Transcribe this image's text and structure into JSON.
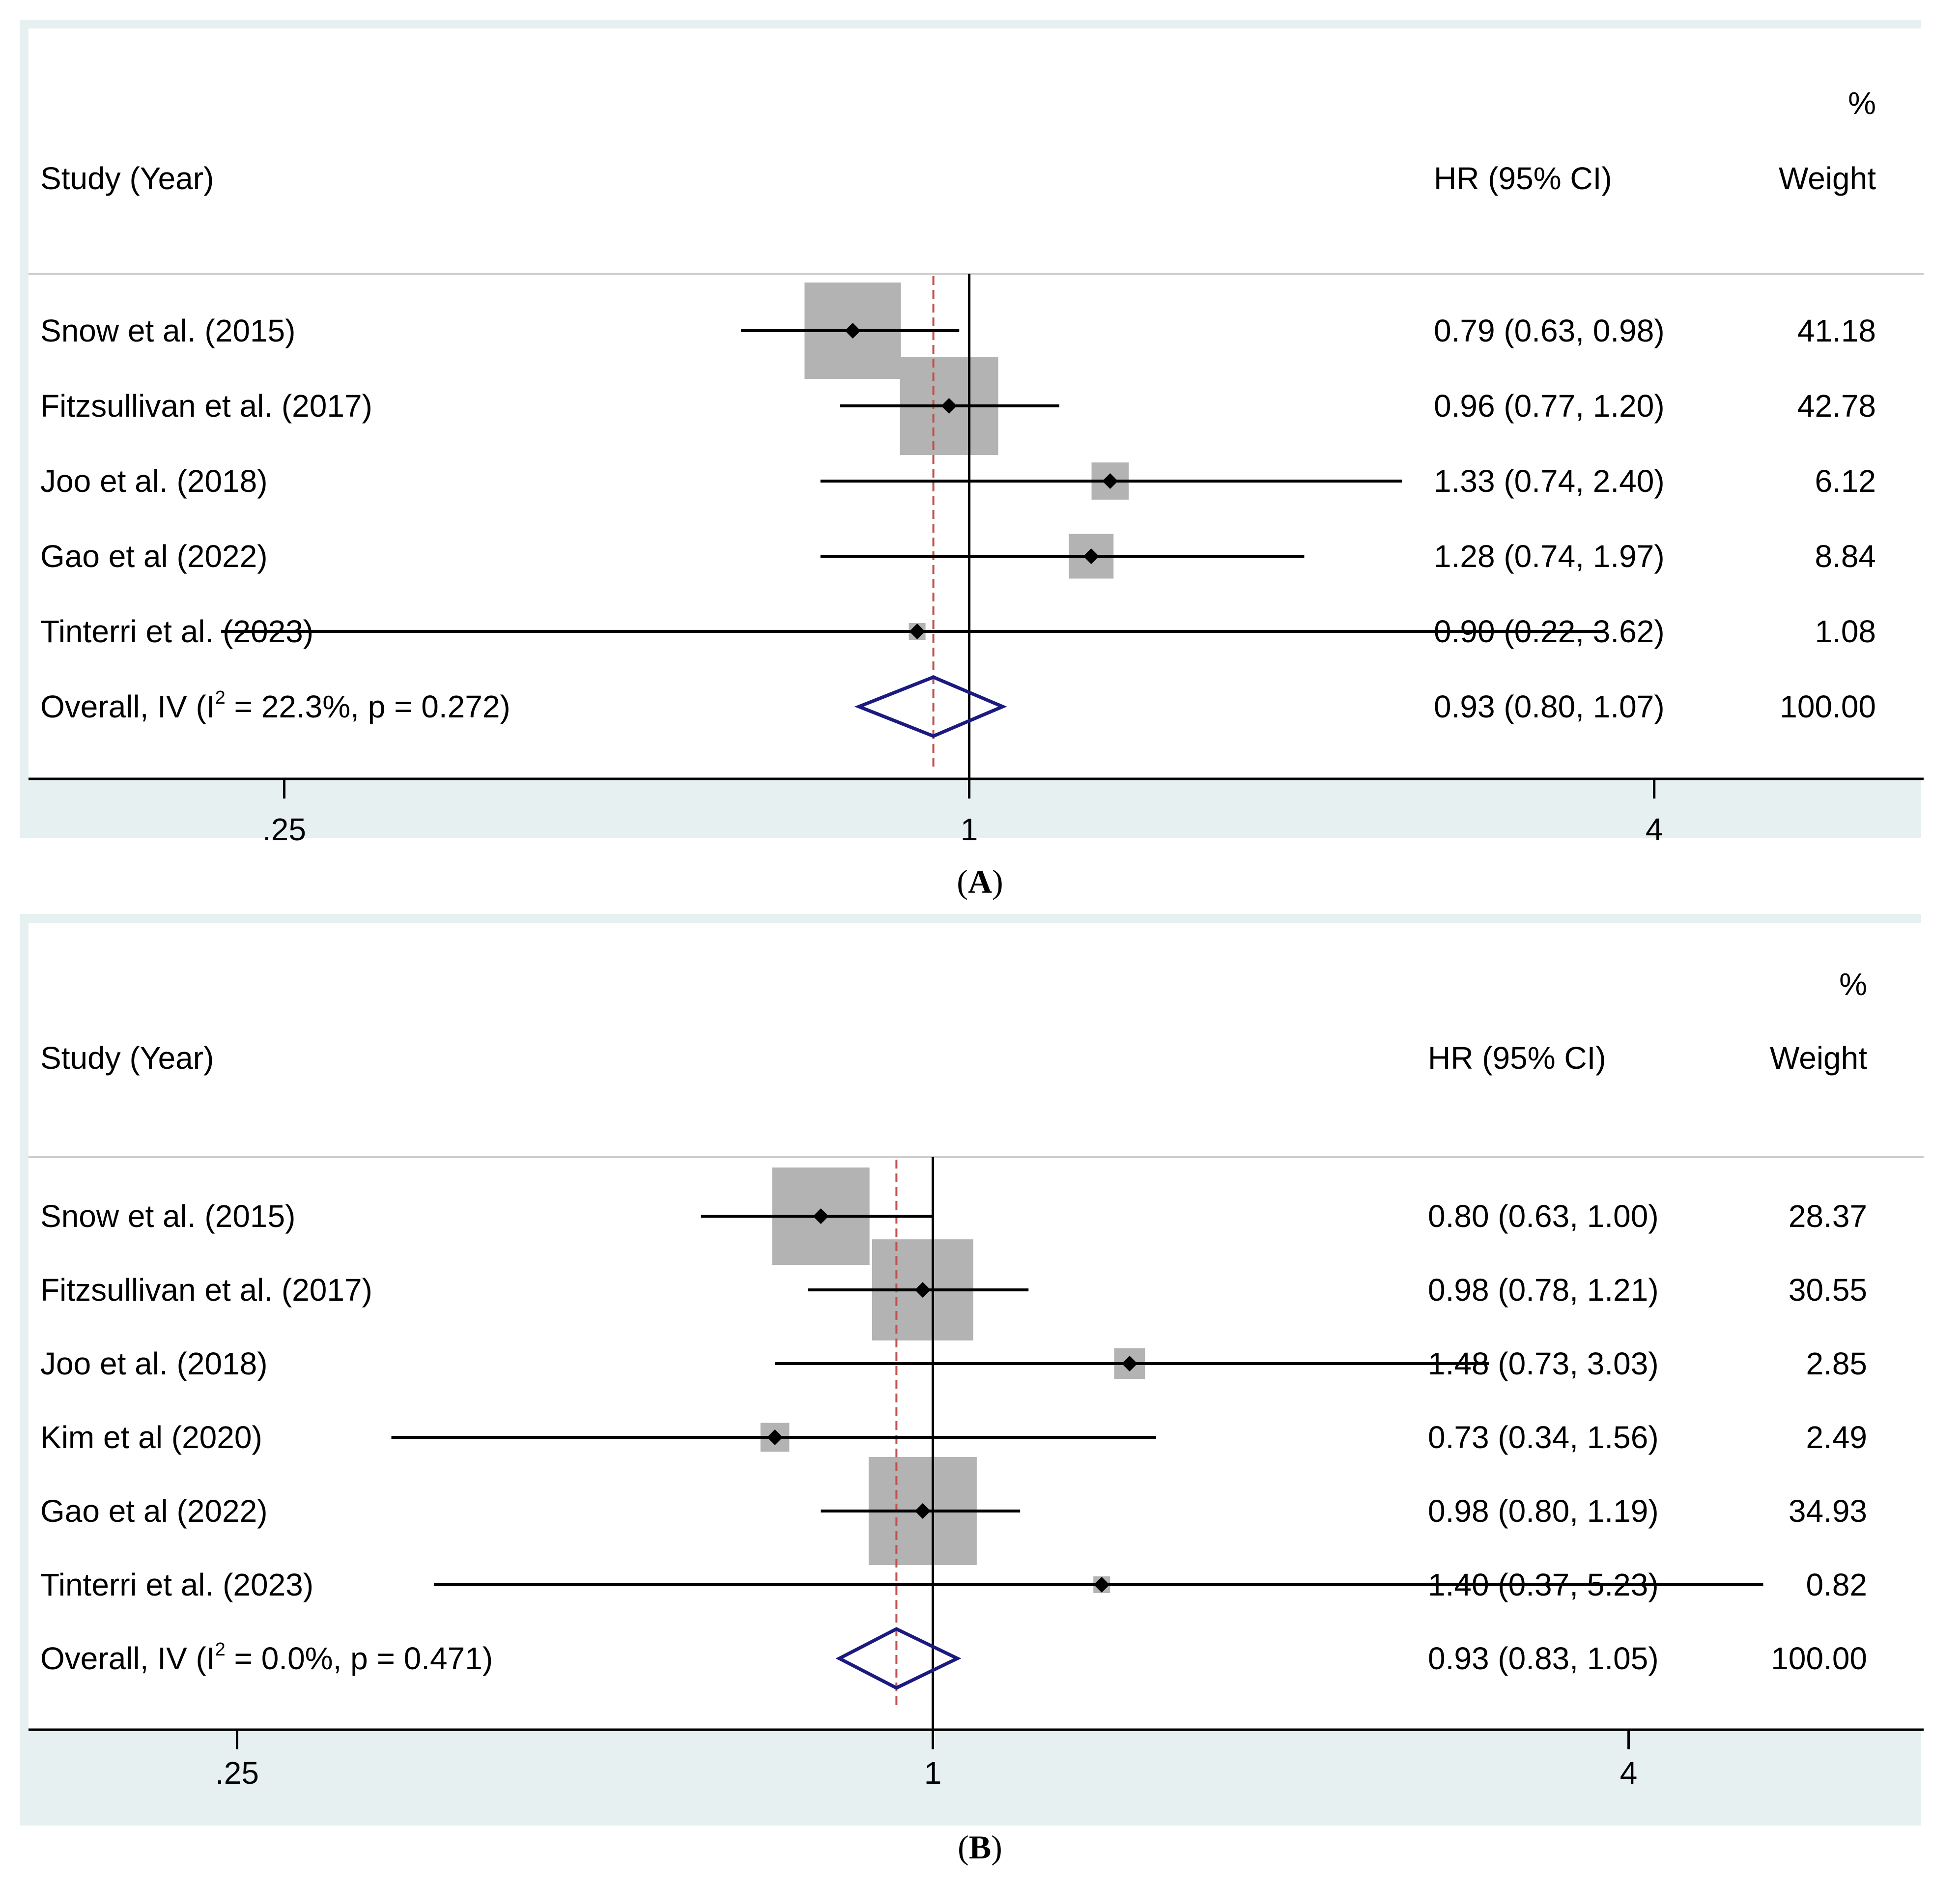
{
  "colors": {
    "outer_bg": "#e6f0f0",
    "plot_bg": "#ffffff",
    "box": "#b3b3b3",
    "ci_line": "#000000",
    "null_line": "#000000",
    "overall_line": "#c0504d",
    "diamond": "#1a1a80",
    "text": "#000000"
  },
  "chart_data": [
    {
      "type": "forest",
      "panel_label": "A",
      "header": {
        "study": "Study (Year)",
        "effect": "HR (95% CI)",
        "weight_top": "%",
        "weight": "Weight"
      },
      "x_scale": "log2",
      "x_ticks": [
        {
          "value": 0.25,
          "label": ".25"
        },
        {
          "value": 1,
          "label": "1"
        },
        {
          "value": 4,
          "label": "4"
        }
      ],
      "xlim": [
        0.149,
        6.9
      ],
      "null_value": 1,
      "studies": [
        {
          "label": "Snow et al. (2015)",
          "hr": 0.79,
          "lo": 0.63,
          "hi": 0.98,
          "hr_text": "0.79 (0.63, 0.98)",
          "weight": "41.18",
          "box_value": 41.18
        },
        {
          "label": "Fitzsullivan et al. (2017)",
          "hr": 0.96,
          "lo": 0.77,
          "hi": 1.2,
          "hr_text": "0.96 (0.77, 1.20)",
          "weight": "42.78",
          "box_value": 42.78
        },
        {
          "label": "Joo et al. (2018)",
          "hr": 1.33,
          "lo": 0.74,
          "hi": 2.4,
          "hr_text": "1.33 (0.74, 2.40)",
          "weight": "6.12",
          "box_value": 6.12
        },
        {
          "label": "Gao et al (2022)",
          "hr": 1.28,
          "lo": 0.74,
          "hi": 1.97,
          "hr_text": "1.28 (0.74, 1.97)",
          "weight": "8.84",
          "box_value": 8.84
        },
        {
          "label": "Tinterri et al. (2023)",
          "hr": 0.9,
          "lo": 0.22,
          "hi": 3.62,
          "hr_text": "0.90 (0.22, 3.62)",
          "weight": "1.08",
          "box_value": 1.08
        }
      ],
      "overall": {
        "label_pre": "Overall, IV (I",
        "label_sup": "2",
        "label_post": " = 22.3%, p = 0.272)",
        "hr": 0.93,
        "lo": 0.8,
        "hi": 1.07,
        "hr_text": "0.93 (0.80, 1.07)",
        "weight": "100.00"
      }
    },
    {
      "type": "forest",
      "panel_label": "B",
      "header": {
        "study": "Study (Year)",
        "effect": "HR (95% CI)",
        "weight_top": "%",
        "weight": "Weight"
      },
      "x_scale": "log2",
      "x_ticks": [
        {
          "value": 0.25,
          "label": ".25"
        },
        {
          "value": 1,
          "label": "1"
        },
        {
          "value": 4,
          "label": "4"
        }
      ],
      "xlim": [
        0.165,
        7.2
      ],
      "null_value": 1,
      "studies": [
        {
          "label": "Snow et al. (2015)",
          "hr": 0.8,
          "lo": 0.63,
          "hi": 1.0,
          "hr_text": "0.80 (0.63, 1.00)",
          "weight": "28.37",
          "box_value": 28.37
        },
        {
          "label": "Fitzsullivan et al. (2017)",
          "hr": 0.98,
          "lo": 0.78,
          "hi": 1.21,
          "hr_text": "0.98 (0.78, 1.21)",
          "weight": "30.55",
          "box_value": 30.55
        },
        {
          "label": "Joo et al. (2018)",
          "hr": 1.48,
          "lo": 0.73,
          "hi": 3.03,
          "hr_text": "1.48 (0.73, 3.03)",
          "weight": "2.85",
          "box_value": 2.85
        },
        {
          "label": "Kim et al (2020)",
          "hr": 0.73,
          "lo": 0.34,
          "hi": 1.56,
          "hr_text": "0.73 (0.34, 1.56)",
          "weight": "2.49",
          "box_value": 2.49
        },
        {
          "label": "Gao et al (2022)",
          "hr": 0.98,
          "lo": 0.8,
          "hi": 1.19,
          "hr_text": "0.98 (0.80, 1.19)",
          "weight": "34.93",
          "box_value": 34.93
        },
        {
          "label": "Tinterri et al. (2023)",
          "hr": 1.4,
          "lo": 0.37,
          "hi": 5.23,
          "hr_text": "1.40 (0.37, 5.23)",
          "weight": "0.82",
          "box_value": 0.82
        }
      ],
      "overall": {
        "label_pre": "Overall, IV (I",
        "label_sup": "2",
        "label_post": " = 0.0%, p = 0.471)",
        "hr": 0.93,
        "lo": 0.83,
        "hi": 1.05,
        "hr_text": "0.93 (0.83, 1.05)",
        "weight": "100.00"
      }
    }
  ]
}
